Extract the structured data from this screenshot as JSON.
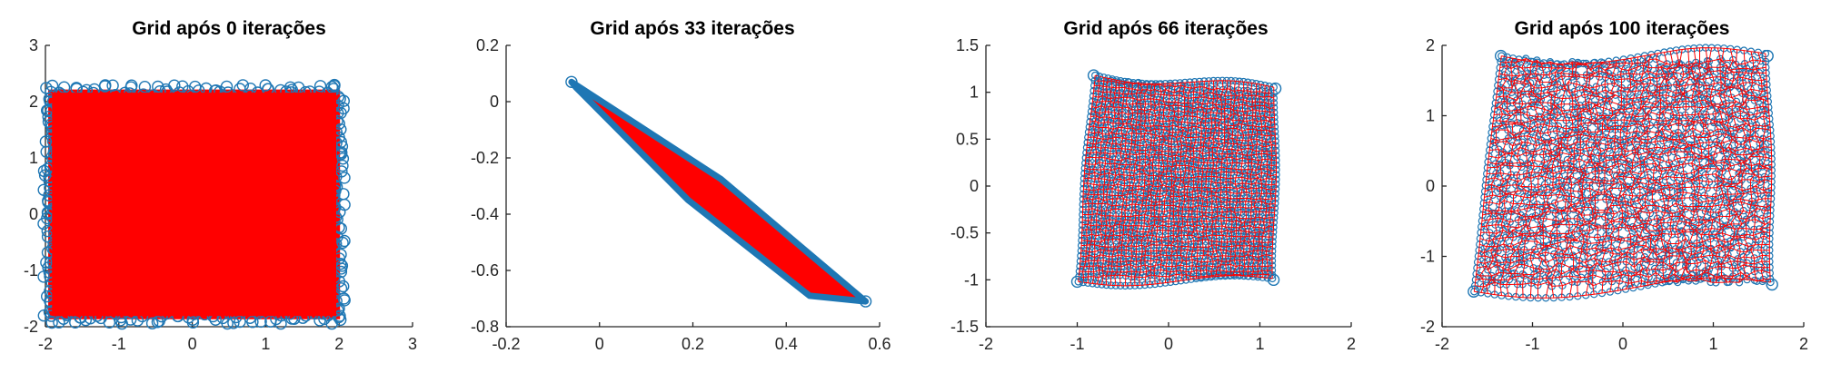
{
  "chart_data": [
    {
      "type": "scatter",
      "title": "Grid após 0 iterações",
      "xlabel": "",
      "ylabel": "",
      "xlim": [
        -2,
        3
      ],
      "ylim": [
        -2,
        3
      ],
      "xticks": [
        -2,
        -1,
        0,
        1,
        2,
        3
      ],
      "yticks": [
        -2,
        -1,
        0,
        1,
        2,
        3
      ],
      "xtick_labels": [
        "-2",
        "-1",
        "0",
        "1",
        "2",
        "3"
      ],
      "ytick_labels": [
        "-2",
        "-1",
        "0",
        "1",
        "2",
        "3"
      ],
      "grid": false,
      "shape": "rectangle",
      "outline": [
        [
          -1.95,
          2.2
        ],
        [
          2.0,
          2.2
        ],
        [
          2.0,
          -1.85
        ],
        [
          -1.95,
          -1.85
        ]
      ],
      "fill": "solid"
    },
    {
      "type": "scatter",
      "title": "Grid após 33 iterações",
      "xlabel": "",
      "ylabel": "",
      "xlim": [
        -0.2,
        0.6
      ],
      "ylim": [
        -0.8,
        0.2
      ],
      "xticks": [
        -0.2,
        0,
        0.2,
        0.4,
        0.6
      ],
      "yticks": [
        -0.8,
        -0.6,
        -0.4,
        -0.2,
        0,
        0.2
      ],
      "xtick_labels": [
        "-0.2",
        "0",
        "0.2",
        "0.4",
        "0.6"
      ],
      "ytick_labels": [
        "-0.8",
        "-0.6",
        "-0.4",
        "-0.2",
        "0",
        "0.2"
      ],
      "grid": false,
      "shape": "diagonal-strip",
      "outline": [
        [
          -0.06,
          0.07
        ],
        [
          0.26,
          -0.275
        ],
        [
          0.57,
          -0.71
        ],
        [
          0.45,
          -0.69
        ],
        [
          0.19,
          -0.35
        ],
        [
          -0.05,
          0.05
        ]
      ],
      "fill": "solid"
    },
    {
      "type": "scatter",
      "title": "Grid após 66 iterações",
      "xlabel": "",
      "ylabel": "",
      "xlim": [
        -2,
        2
      ],
      "ylim": [
        -1.5,
        1.5
      ],
      "xticks": [
        -2,
        -1,
        0,
        1,
        2
      ],
      "yticks": [
        -1.5,
        -1,
        -0.5,
        0,
        0.5,
        1,
        1.5
      ],
      "xtick_labels": [
        "-2",
        "-1",
        "0",
        "1",
        "2"
      ],
      "ytick_labels": [
        "-1.5",
        "-1",
        "-0.5",
        "0",
        "0.5",
        "1",
        "1.5"
      ],
      "grid": false,
      "shape": "mesh",
      "outline": [
        [
          -0.82,
          1.18
        ],
        [
          1.17,
          1.04
        ],
        [
          1.15,
          -1.0
        ],
        [
          -1.0,
          -1.02
        ]
      ],
      "mesh_divisions": 40,
      "fill": "mesh"
    },
    {
      "type": "scatter",
      "title": "Grid após 100 iterações",
      "xlabel": "",
      "ylabel": "",
      "xlim": [
        -2,
        2
      ],
      "ylim": [
        -2,
        2
      ],
      "xticks": [
        -2,
        -1,
        0,
        1,
        2
      ],
      "yticks": [
        -2,
        -1,
        0,
        1,
        2
      ],
      "xtick_labels": [
        "-2",
        "-1",
        "0",
        "1",
        "2"
      ],
      "ytick_labels": [
        "-2",
        "-1",
        "0",
        "1",
        "2"
      ],
      "grid": false,
      "shape": "mesh",
      "outline": [
        [
          -1.35,
          1.85
        ],
        [
          1.6,
          1.85
        ],
        [
          1.65,
          -1.4
        ],
        [
          -1.65,
          -1.5
        ]
      ],
      "mesh_divisions": 40,
      "fill": "mesh"
    }
  ],
  "colors": {
    "marker": "#1f77b4",
    "line": "#ff0000",
    "axis": "#262626",
    "title": "#000000"
  }
}
